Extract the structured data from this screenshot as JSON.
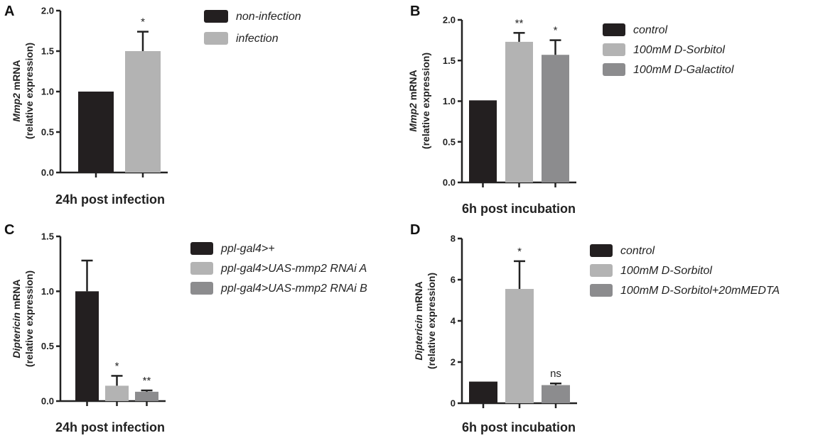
{
  "chart_data": [
    {
      "type": "bar",
      "panel_label": "A",
      "categories": [
        "non-infection",
        "infection"
      ],
      "values": [
        1.0,
        1.5
      ],
      "errors": [
        0,
        0.24
      ],
      "significance": [
        "",
        "*"
      ],
      "colors": [
        "#231f20",
        "#b3b3b3"
      ],
      "legend": [
        "non-infection",
        "infection"
      ],
      "legend_position": "right",
      "xlabel": "24h post infection",
      "ylabel_gene": "Mmp2",
      "ylabel_suffix": " mRNA",
      "ylabel_line2": "(relative expression)",
      "yticks": [
        "0.0",
        "0.5",
        "1.0",
        "1.5",
        "2.0"
      ],
      "ylim": [
        0,
        2.0
      ]
    },
    {
      "type": "bar",
      "panel_label": "B",
      "categories": [
        "control",
        "100mM D-Sorbitol",
        "100mM D-Galactitol"
      ],
      "values": [
        1.01,
        1.73,
        1.57
      ],
      "errors": [
        0,
        0.11,
        0.18
      ],
      "significance": [
        "",
        "**",
        "*"
      ],
      "colors": [
        "#231f20",
        "#b3b3b3",
        "#8c8c8e"
      ],
      "legend": [
        "control",
        "100mM D-Sorbitol",
        "100mM D-Galactitol"
      ],
      "legend_position": "right",
      "xlabel": "6h post incubation",
      "ylabel_gene": "Mmp2",
      "ylabel_suffix": " mRNA",
      "ylabel_line2": "(relative expression)",
      "yticks": [
        "0.0",
        "0.5",
        "1.0",
        "1.5",
        "2.0"
      ],
      "ylim": [
        0,
        2.0
      ]
    },
    {
      "type": "bar",
      "panel_label": "C",
      "categories": [
        "ppl-gal4>+",
        "ppl-gal4>UAS-mmp2 RNAi A",
        "ppl-gal4>UAS-mmp2 RNAi B"
      ],
      "values": [
        1.0,
        0.14,
        0.085
      ],
      "errors": [
        0.28,
        0.09,
        0.012
      ],
      "significance": [
        "",
        "*",
        "**"
      ],
      "colors": [
        "#231f20",
        "#b3b3b3",
        "#8c8c8e"
      ],
      "legend": [
        "ppl-gal4>+",
        "ppl-gal4>UAS-mmp2 RNAi A",
        "ppl-gal4>UAS-mmp2 RNAi B"
      ],
      "legend_position": "right",
      "xlabel": "24h post infection",
      "ylabel_gene": "Diptericin",
      "ylabel_suffix": " mRNA",
      "ylabel_line2": "(relative expression)",
      "yticks": [
        "0.0",
        "0.5",
        "1.0",
        "1.5"
      ],
      "ylim": [
        0,
        1.5
      ]
    },
    {
      "type": "bar",
      "panel_label": "D",
      "categories": [
        "control",
        "100mM D-Sorbitol",
        "100mM D-Sorbitol+20mMEDTA"
      ],
      "values": [
        1.05,
        5.55,
        0.88
      ],
      "errors": [
        0,
        1.35,
        0.08
      ],
      "significance": [
        "",
        "*",
        "ns"
      ],
      "colors": [
        "#231f20",
        "#b3b3b3",
        "#8c8c8e"
      ],
      "legend": [
        "control",
        "100mM D-Sorbitol",
        "100mM D-Sorbitol+20mMEDTA"
      ],
      "legend_position": "right",
      "xlabel": "6h post incubation",
      "ylabel_gene": "Diptericin",
      "ylabel_suffix": " mRNA",
      "ylabel_line2": "(relative expression)",
      "yticks": [
        "0",
        "2",
        "4",
        "6",
        "8"
      ],
      "ylim": [
        0,
        8
      ]
    }
  ]
}
